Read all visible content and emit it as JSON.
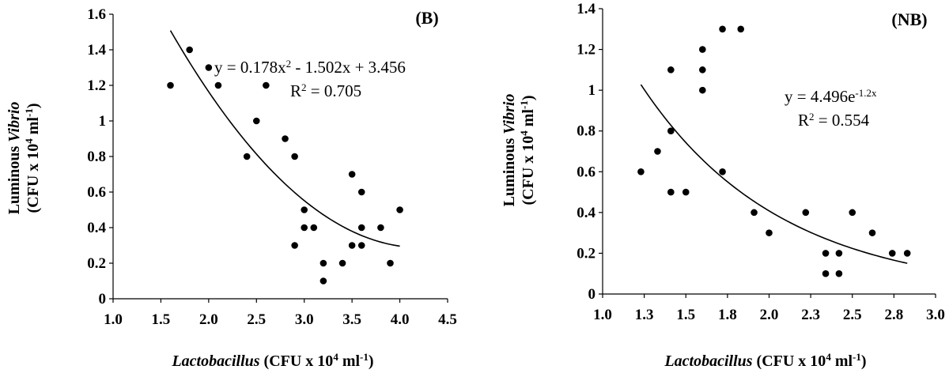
{
  "chart_data": [
    {
      "type": "scatter",
      "panel_label": "(B)",
      "xlabel": {
        "italic": "Lactobacillus",
        "rest": " (CFU x 10",
        "sup": "4",
        "tail": " ml",
        "sup2": "-1",
        "end": ")"
      },
      "ylabel_top": {
        "pre": "Luminous ",
        "italic": "Vibrio"
      },
      "ylabel_bottom": {
        "pre": "(CFU x 10",
        "sup": "4",
        "mid": " ml",
        "sup2": "-1",
        "end": ")"
      },
      "xlim": [
        1.0,
        4.5
      ],
      "ylim": [
        0,
        1.6
      ],
      "xticks": [
        "1.0",
        "1.5",
        "2.0",
        "2.5",
        "3.0",
        "3.5",
        "4.0",
        "4.5"
      ],
      "yticks": [
        "0",
        "0.2",
        "0.4",
        "0.6",
        "0.8",
        "1",
        "1.2",
        "1.4",
        "1.6"
      ],
      "points": [
        [
          1.6,
          1.2
        ],
        [
          1.8,
          1.4
        ],
        [
          2.0,
          1.3
        ],
        [
          2.1,
          1.2
        ],
        [
          2.6,
          1.2
        ],
        [
          2.4,
          0.8
        ],
        [
          2.5,
          1.0
        ],
        [
          2.8,
          0.9
        ],
        [
          2.9,
          0.8
        ],
        [
          2.9,
          0.3
        ],
        [
          3.0,
          0.5
        ],
        [
          3.0,
          0.4
        ],
        [
          3.1,
          0.4
        ],
        [
          3.2,
          0.2
        ],
        [
          3.2,
          0.1
        ],
        [
          3.4,
          0.2
        ],
        [
          3.5,
          0.7
        ],
        [
          3.5,
          0.3
        ],
        [
          3.6,
          0.6
        ],
        [
          3.6,
          0.4
        ],
        [
          3.6,
          0.3
        ],
        [
          3.8,
          0.4
        ],
        [
          3.9,
          0.2
        ],
        [
          4.0,
          0.5
        ]
      ],
      "trendline": {
        "kind": "poly2",
        "a": 0.178,
        "b": -1.502,
        "c": 3.456,
        "x_range": [
          1.6,
          4.0
        ]
      },
      "equation": {
        "pre": "y = 0.178x",
        "sup": "2",
        "post": " - 1.502x + 3.456"
      },
      "r2": {
        "pre": "R",
        "sup": "2",
        "post": " = 0.705"
      }
    },
    {
      "type": "scatter",
      "panel_label": "(NB)",
      "xlabel": {
        "italic": "Lactobacillus",
        "rest": " (CFU x 10",
        "sup": "4",
        "tail": " ml",
        "sup2": "-1",
        "end": ")"
      },
      "ylabel_top": {
        "pre": "Luminous ",
        "italic": "Vibrio"
      },
      "ylabel_bottom": {
        "pre": "(CFU x 10",
        "sup": "4",
        "mid": " ml",
        "sup2": "-1",
        "end": ")"
      },
      "xlim": [
        1.0,
        3.0
      ],
      "ylim": [
        0,
        1.4
      ],
      "xticks": [
        "1.0",
        "1.3",
        "1.5",
        "1.8",
        "2.0",
        "2.3",
        "2.5",
        "2.8",
        "3.0"
      ],
      "ytick_values": [
        0,
        0.2,
        0.4,
        0.6,
        0.8,
        1,
        1.2,
        1.4
      ],
      "yticks": [
        "0",
        "0.2",
        "0.4",
        "0.6",
        "0.8",
        "1",
        "1.2",
        "1.4"
      ],
      "points": [
        [
          1.23,
          0.6
        ],
        [
          1.33,
          0.7
        ],
        [
          1.41,
          1.1
        ],
        [
          1.41,
          0.8
        ],
        [
          1.41,
          0.5
        ],
        [
          1.5,
          0.5
        ],
        [
          1.6,
          1.2
        ],
        [
          1.6,
          1.1
        ],
        [
          1.6,
          1.0
        ],
        [
          1.72,
          1.3
        ],
        [
          1.72,
          0.6
        ],
        [
          1.83,
          1.3
        ],
        [
          1.91,
          0.4
        ],
        [
          2.0,
          0.3
        ],
        [
          2.22,
          0.4
        ],
        [
          2.34,
          0.2
        ],
        [
          2.34,
          0.1
        ],
        [
          2.42,
          0.2
        ],
        [
          2.42,
          0.1
        ],
        [
          2.5,
          0.4
        ],
        [
          2.62,
          0.3
        ],
        [
          2.74,
          0.2
        ],
        [
          2.83,
          0.2
        ]
      ],
      "trendline": {
        "kind": "exp",
        "a": 4.496,
        "k": -1.2,
        "x_range": [
          1.23,
          2.83
        ]
      },
      "equation": {
        "pre": "y = 4.496e",
        "sup": "-1.2x",
        "post": ""
      },
      "r2": {
        "pre": "R",
        "sup": "2",
        "post": " = 0.554"
      }
    }
  ]
}
